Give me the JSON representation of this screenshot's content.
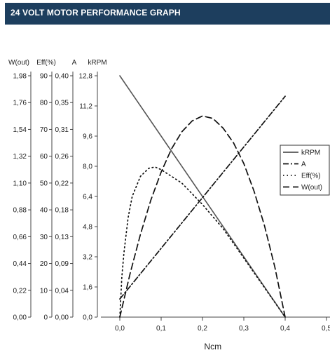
{
  "header": {
    "title": "24 VOLT MOTOR PERFORMANCE GRAPH",
    "background_color": "#1d3e5e",
    "text_color": "#ffffff"
  },
  "chart_data": {
    "type": "line",
    "title": "",
    "xlabel": "Ncm",
    "xlim": [
      0,
      0.5
    ],
    "x_ticks": [
      "0,0",
      "0,1",
      "0,2",
      "0,3",
      "0,4",
      "0,5"
    ],
    "grid": false,
    "legend_position": "right",
    "axes": [
      {
        "label": "W(out)",
        "range": [
          0,
          1.98
        ],
        "ticks": [
          "0,00",
          "0,22",
          "0,44",
          "0,66",
          "0,88",
          "1,10",
          "1,32",
          "1,54",
          "1,76",
          "1,98"
        ]
      },
      {
        "label": "Eff(%)",
        "range": [
          0,
          90
        ],
        "ticks": [
          "0",
          "10",
          "20",
          "30",
          "40",
          "50",
          "60",
          "70",
          "80",
          "90"
        ]
      },
      {
        "label": "A",
        "range": [
          0,
          0.4
        ],
        "ticks": [
          "0,00",
          "0,04",
          "0,09",
          "0,13",
          "0,18",
          "0,22",
          "0,26",
          "0,31",
          "0,35",
          "0,40"
        ]
      },
      {
        "label": "kRPM",
        "range": [
          0,
          14.4
        ],
        "ticks": [
          "0,0",
          "1,6",
          "3,2",
          "4,8",
          "6,4",
          "8,0",
          "9,6",
          "11,2",
          "12,8"
        ]
      }
    ],
    "series": [
      {
        "name": "kRPM",
        "axis": "kRPM",
        "style": "solid",
        "color": "#555555",
        "x": [
          0,
          0.4
        ],
        "y": [
          14.4,
          0
        ]
      },
      {
        "name": "A",
        "axis": "A",
        "style": "dashdot",
        "color": "#111111",
        "x": [
          0,
          0.4
        ],
        "y": [
          0.03,
          0.366
        ]
      },
      {
        "name": "Eff(%)",
        "axis": "Eff(%)",
        "style": "dotted",
        "color": "#111111",
        "x": [
          0,
          0.005,
          0.01,
          0.02,
          0.03,
          0.05,
          0.07,
          0.085,
          0.1,
          0.15,
          0.2,
          0.25,
          0.3,
          0.35,
          0.4
        ],
        "y": [
          0,
          15,
          24,
          37,
          45,
          52.5,
          55.5,
          56,
          55,
          50,
          42,
          33,
          22,
          11,
          0
        ]
      },
      {
        "name": "W(out)",
        "axis": "W(out)",
        "style": "dashed",
        "color": "#111111",
        "x": [
          0,
          0.025,
          0.05,
          0.075,
          0.1,
          0.125,
          0.15,
          0.175,
          0.2,
          0.225,
          0.25,
          0.275,
          0.3,
          0.325,
          0.35,
          0.375,
          0.4
        ],
        "y": [
          0,
          0.36,
          0.68,
          0.96,
          1.19,
          1.38,
          1.52,
          1.61,
          1.65,
          1.63,
          1.55,
          1.43,
          1.26,
          1.03,
          0.75,
          0.41,
          0
        ]
      }
    ]
  }
}
